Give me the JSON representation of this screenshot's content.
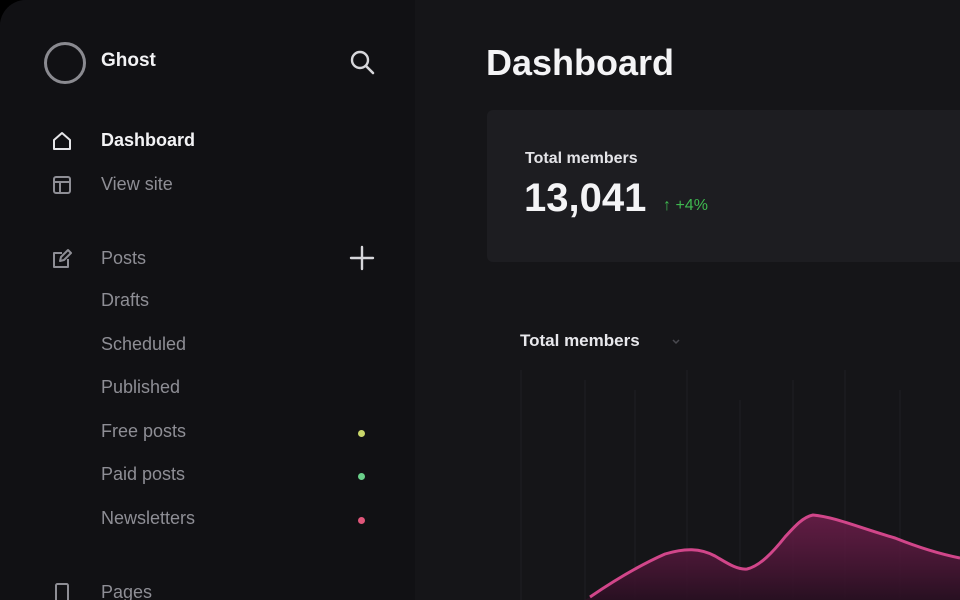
{
  "app": {
    "name": "Ghost"
  },
  "sidebar": {
    "primary": [
      {
        "label": "Dashboard",
        "icon": "home-icon"
      },
      {
        "label": "View site",
        "icon": "layout-icon"
      }
    ],
    "posts": {
      "label": "Posts",
      "icon": "edit-icon",
      "sub_items": [
        {
          "label": "Drafts"
        },
        {
          "label": "Scheduled"
        },
        {
          "label": "Published"
        },
        {
          "label": "Free posts",
          "dot_color": "#c9d66a"
        },
        {
          "label": "Paid posts",
          "dot_color": "#6ad08a"
        },
        {
          "label": "Newsletters",
          "dot_color": "#e0567a"
        }
      ]
    },
    "pages": {
      "label": "Pages",
      "icon": "page-icon"
    }
  },
  "main": {
    "title": "Dashboard",
    "stat": {
      "label": "Total members",
      "value": "13,041",
      "delta": "↑ +4%"
    },
    "chart_title": "Total members"
  },
  "colors": {
    "accent_line": "#d1468a",
    "positive": "#3fb950"
  }
}
